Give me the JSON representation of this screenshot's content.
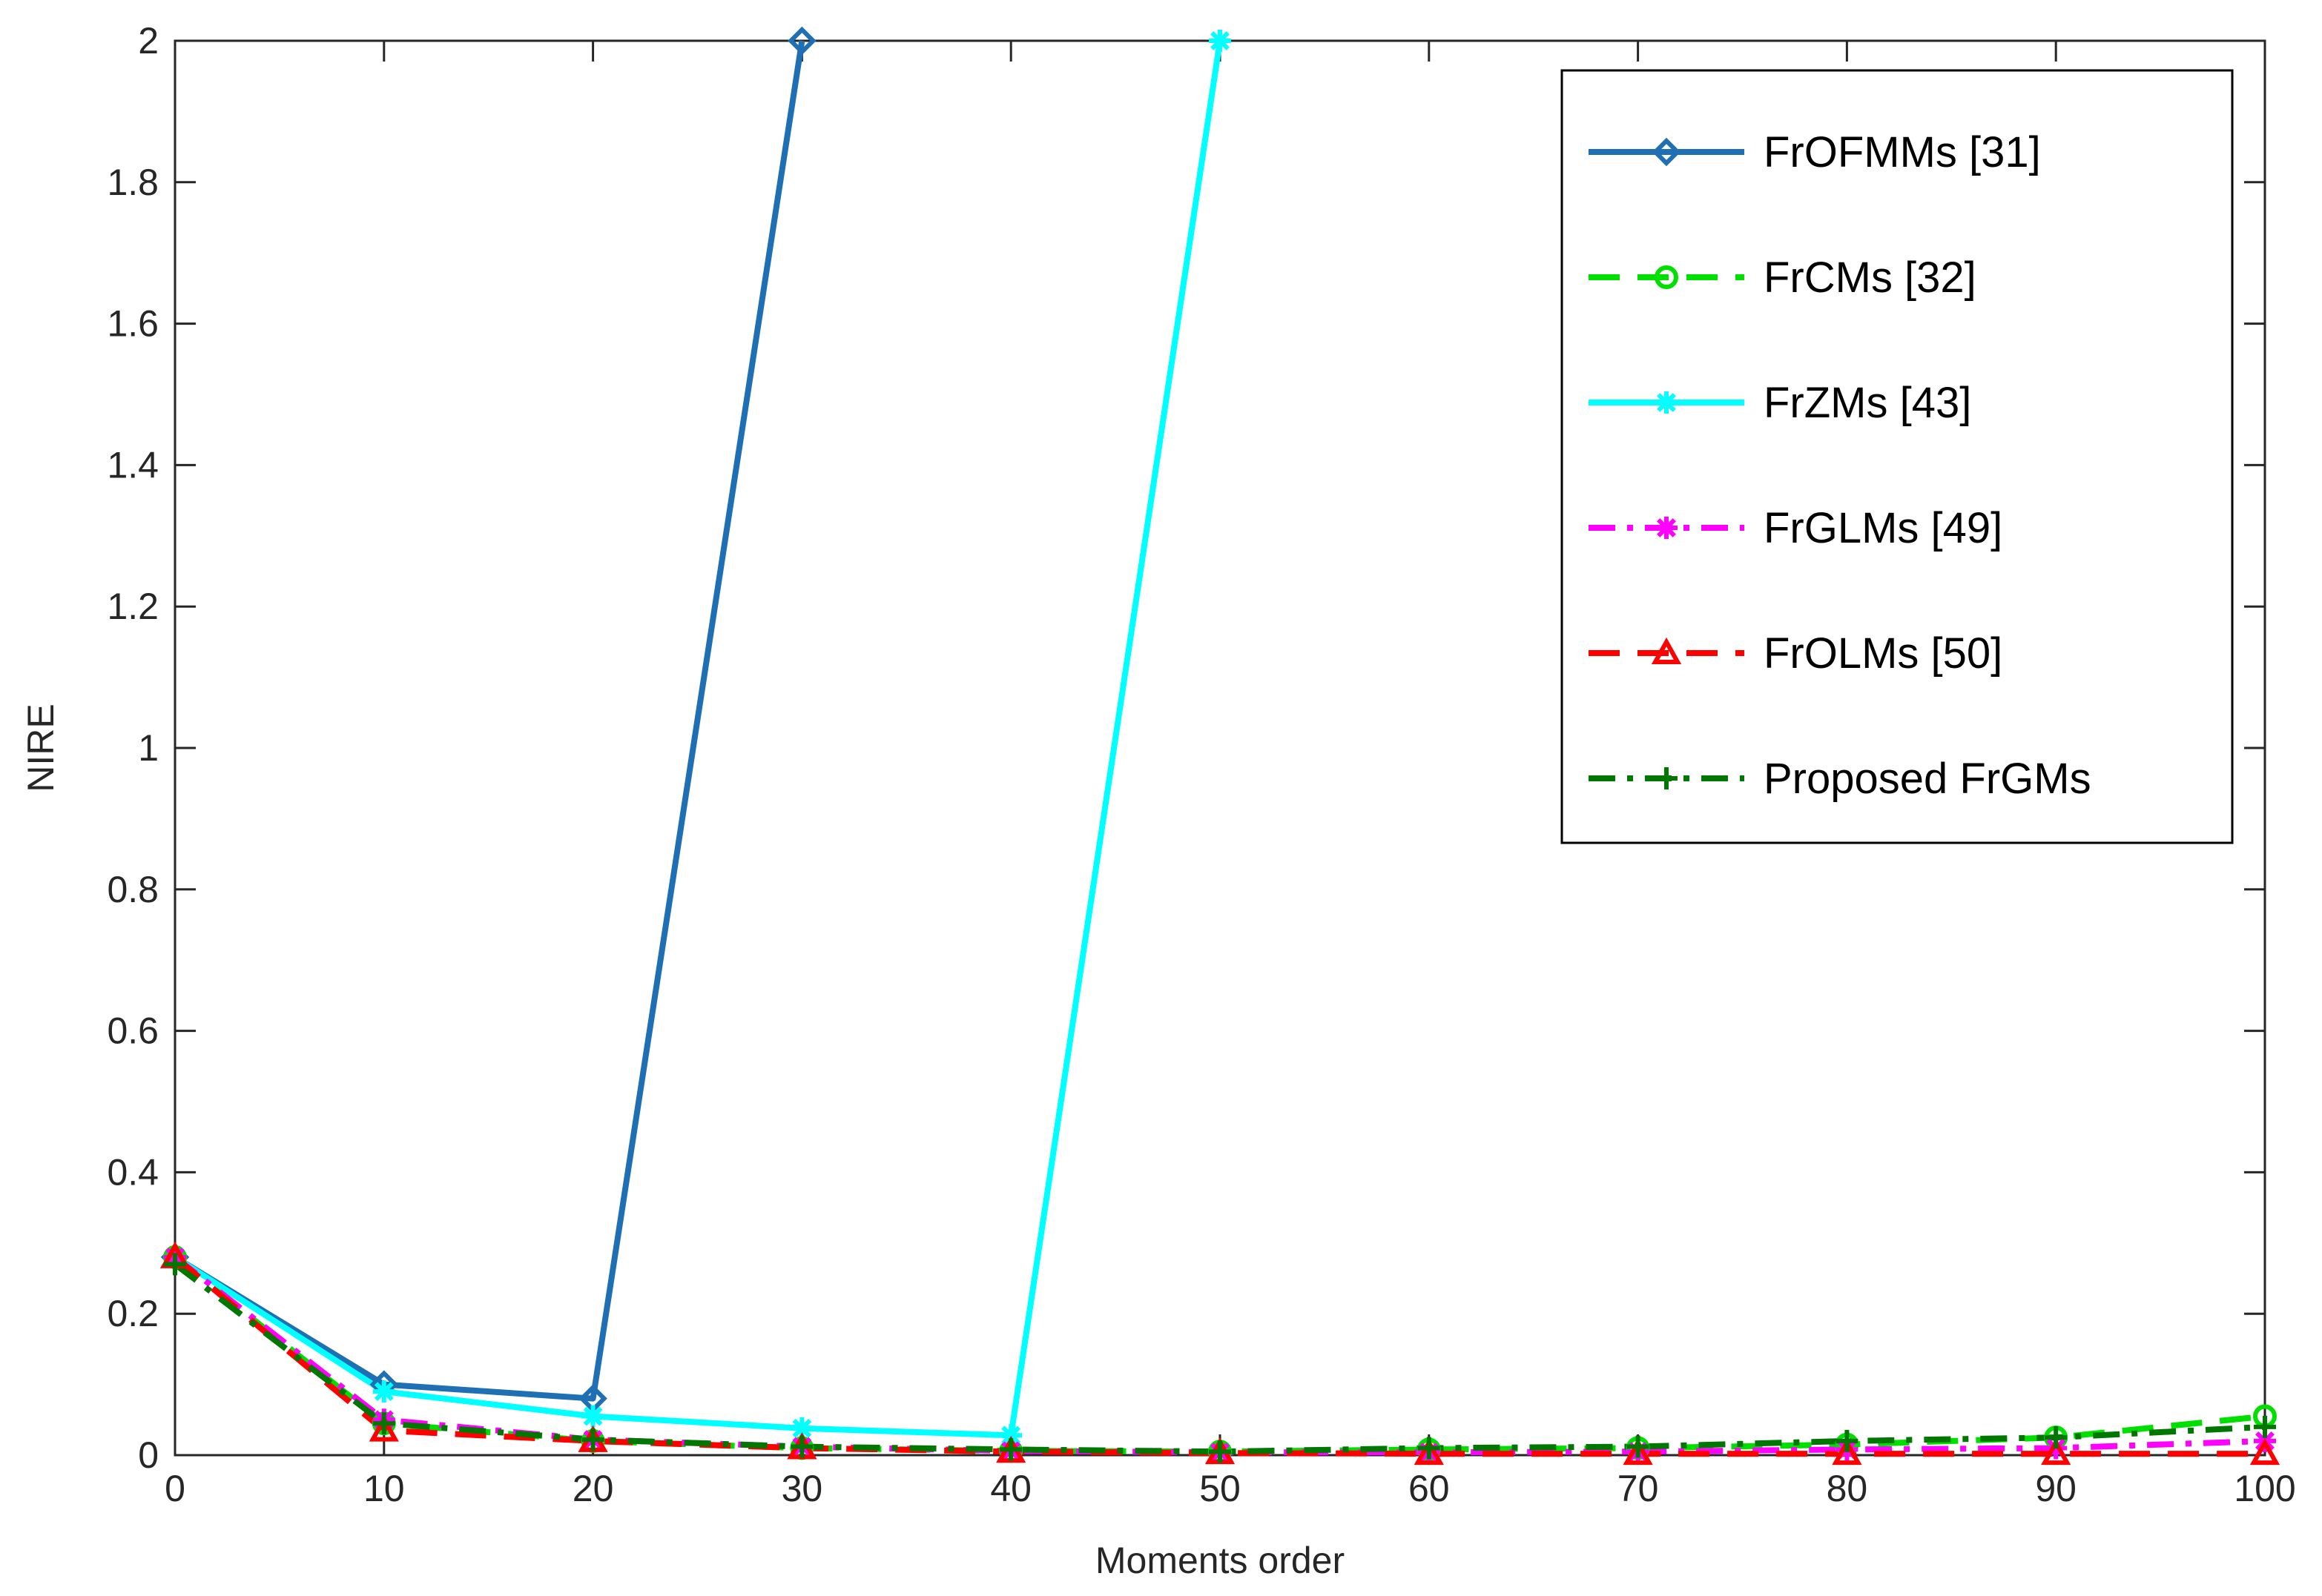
{
  "chart_data": {
    "type": "line",
    "title": "",
    "xlabel": "Moments order",
    "ylabel": "NIRE",
    "xlim": [
      0,
      100
    ],
    "ylim": [
      0,
      2
    ],
    "xticks": [
      0,
      10,
      20,
      30,
      40,
      50,
      60,
      70,
      80,
      90,
      100
    ],
    "yticks": [
      0,
      0.2,
      0.4,
      0.6,
      0.8,
      1,
      1.2,
      1.4,
      1.6,
      1.8,
      2
    ],
    "ytick_labels": [
      "0",
      "0.2",
      "0.4",
      "0.6",
      "0.8",
      "1",
      "1.2",
      "1.4",
      "1.6",
      "1.8",
      "2"
    ],
    "grid": false,
    "legend_position": "top-right",
    "series": [
      {
        "name": "FrOFMMs [31]",
        "color": "#1f6fb5",
        "dash": "solid",
        "marker": "diamond",
        "x": [
          0,
          10,
          20,
          30
        ],
        "values": [
          0.28,
          0.1,
          0.08,
          2.0
        ]
      },
      {
        "name": "FrCMs [32]",
        "color": "#00e000",
        "dash": "dashed",
        "marker": "circle",
        "x": [
          0,
          10,
          20,
          30,
          40,
          50,
          60,
          70,
          80,
          90,
          100
        ],
        "values": [
          0.28,
          0.045,
          0.02,
          0.01,
          0.006,
          0.005,
          0.008,
          0.01,
          0.015,
          0.025,
          0.055
        ]
      },
      {
        "name": "FrZMs [43]",
        "color": "#00ffff",
        "dash": "solid",
        "marker": "star",
        "x": [
          0,
          10,
          20,
          30,
          40,
          50
        ],
        "values": [
          0.28,
          0.09,
          0.055,
          0.038,
          0.028,
          2.0
        ]
      },
      {
        "name": "FrGLMs [49]",
        "color": "#ff00ff",
        "dash": "dashdot",
        "marker": "star",
        "x": [
          0,
          10,
          20,
          30,
          40,
          50,
          60,
          70,
          80,
          90,
          100
        ],
        "values": [
          0.28,
          0.05,
          0.022,
          0.012,
          0.006,
          0.004,
          0.004,
          0.005,
          0.008,
          0.01,
          0.02
        ]
      },
      {
        "name": "FrOLMs [50]",
        "color": "#ff0000",
        "dash": "dashed",
        "marker": "triangle",
        "x": [
          0,
          10,
          20,
          30,
          40,
          50,
          60,
          70,
          80,
          90,
          100
        ],
        "values": [
          0.28,
          0.035,
          0.02,
          0.01,
          0.005,
          0.003,
          0.002,
          0.002,
          0.002,
          0.002,
          0.002
        ]
      },
      {
        "name": "Proposed FrGMs",
        "color": "#007700",
        "dash": "dashdot",
        "marker": "plus",
        "x": [
          0,
          10,
          20,
          30,
          40,
          50,
          60,
          70,
          80,
          90,
          100
        ],
        "values": [
          0.27,
          0.045,
          0.022,
          0.012,
          0.008,
          0.005,
          0.01,
          0.012,
          0.02,
          0.025,
          0.04
        ]
      }
    ]
  }
}
